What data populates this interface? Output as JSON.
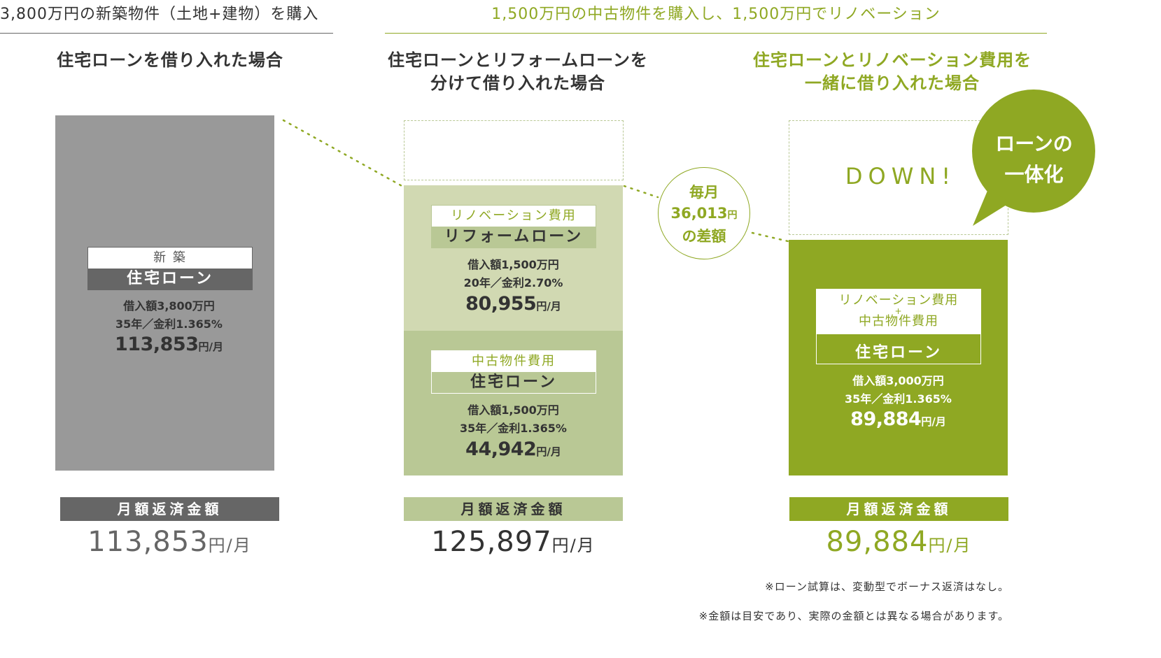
{
  "left": {
    "header": "3,800万円の新築物件（土地+建物）を購入",
    "subtitle": "住宅ローンを借り入れた場合",
    "box_top": "新 築",
    "box_bottom": "住宅ローン",
    "detail1": "借入額3,800万円",
    "detail2": "35年／金利1.365%",
    "monthly": "113,853",
    "unit": "円/月",
    "bar_label": "月額返済金額",
    "total": "113,853",
    "total_unit": "円/月",
    "color": "#999999",
    "dark": "#666666"
  },
  "right_header": "1,500万円の中古物件を購入し、1,500万円でリノベーション",
  "middle": {
    "subtitle_line1": "住宅ローンとリフォームローンを",
    "subtitle_line2": "分けて借り入れた場合",
    "reform": {
      "box_top": "リノベーション費用",
      "box_bottom": "リフォームローン",
      "detail1": "借入額1,500万円",
      "detail2": "20年／金利2.70%",
      "monthly": "80,955",
      "unit": "円/月"
    },
    "housing": {
      "box_top": "中古物件費用",
      "box_bottom": "住宅ローン",
      "detail1": "借入額1,500万円",
      "detail2": "35年／金利1.365%",
      "monthly": "44,942",
      "unit": "円/月"
    },
    "bar_label": "月額返済金額",
    "total": "125,897",
    "total_unit": "円/月",
    "color_light": "#d1d9b2",
    "color_mid": "#b9c895"
  },
  "right": {
    "subtitle_line1": "住宅ローンとリノベーション費用を",
    "subtitle_line2": "一緒に借り入れた場合",
    "down": "DOWN!",
    "bubble_line1": "ローンの",
    "bubble_line2": "一体化",
    "box_top1": "リノベーション費用",
    "box_plus": "+",
    "box_top2": "中古物件費用",
    "box_bottom": "住宅ローン",
    "detail1": "借入額3,000万円",
    "detail2": "35年／金利1.365%",
    "monthly": "89,884",
    "unit": "円/月",
    "bar_label": "月額返済金額",
    "total": "89,884",
    "total_unit": "円/月",
    "color": "#8fa823"
  },
  "difference": {
    "line1": "毎月",
    "amount": "36,013",
    "unit": "円",
    "line3": "の差額"
  },
  "notes": [
    "※ローン試算は、変動型でボーナス返済はなし。",
    "※金額は目安であり、実際の金額とは異なる場合があります。"
  ]
}
